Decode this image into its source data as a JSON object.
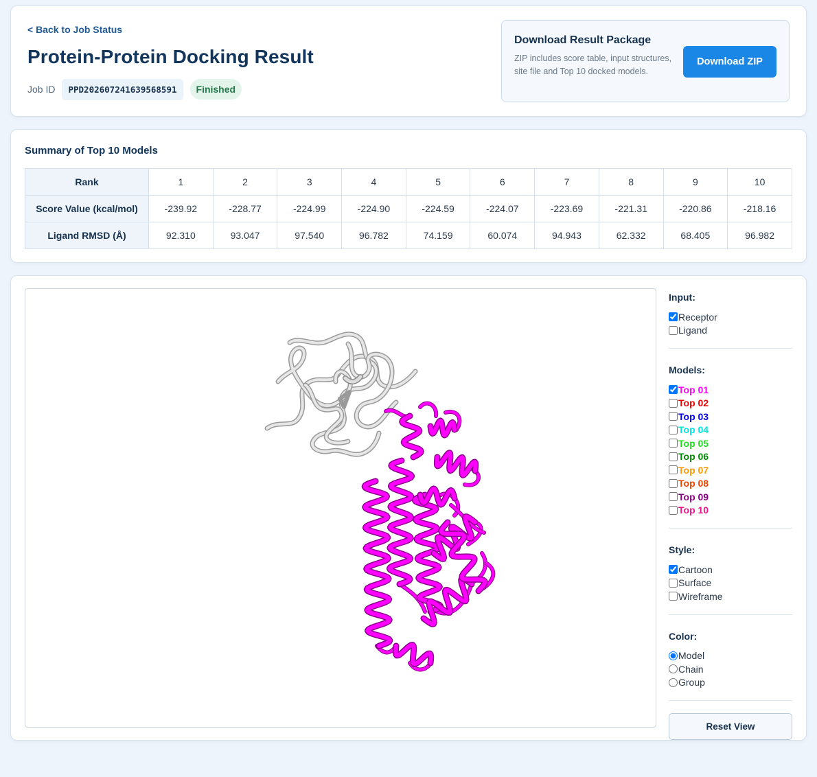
{
  "header": {
    "back_link": "< Back to Job Status",
    "title": "Protein-Protein Docking Result",
    "job_id_label": "Job ID",
    "job_id": "PPD202607241639568591",
    "status": "Finished"
  },
  "download": {
    "title": "Download Result Package",
    "description": "ZIP includes score table, input structures, site file and Top 10 docked models.",
    "button_label": "Download ZIP"
  },
  "summary": {
    "title": "Summary of Top 10 Models",
    "rank_label": "Rank",
    "score_label": "Score Value (kcal/mol)",
    "rmsd_label": "Ligand RMSD (Å)",
    "ranks": [
      "1",
      "2",
      "3",
      "4",
      "5",
      "6",
      "7",
      "8",
      "9",
      "10"
    ],
    "scores": [
      "-239.92",
      "-228.77",
      "-224.99",
      "-224.90",
      "-224.59",
      "-224.07",
      "-223.69",
      "-221.31",
      "-220.86",
      "-218.16"
    ],
    "rmsd": [
      "92.310",
      "93.047",
      "97.540",
      "96.782",
      "74.159",
      "60.074",
      "94.943",
      "62.332",
      "68.405",
      "96.982"
    ]
  },
  "controls": {
    "input_title": "Input:",
    "inputs": [
      {
        "label": "Receptor",
        "checked": true
      },
      {
        "label": "Ligand",
        "checked": false
      }
    ],
    "models_title": "Models:",
    "models": [
      {
        "label": "Top 01",
        "color": "#ff00ff",
        "checked": true
      },
      {
        "label": "Top 02",
        "color": "#ee0000",
        "checked": false
      },
      {
        "label": "Top 03",
        "color": "#0000ee",
        "checked": false
      },
      {
        "label": "Top 04",
        "color": "#00e5e5",
        "checked": false
      },
      {
        "label": "Top 05",
        "color": "#22dd22",
        "checked": false
      },
      {
        "label": "Top 06",
        "color": "#008800",
        "checked": false
      },
      {
        "label": "Top 07",
        "color": "#ff9900",
        "checked": false
      },
      {
        "label": "Top 08",
        "color": "#ee4400",
        "checked": false
      },
      {
        "label": "Top 09",
        "color": "#880088",
        "checked": false
      },
      {
        "label": "Top 10",
        "color": "#ee1188",
        "checked": false
      }
    ],
    "style_title": "Style:",
    "styles": [
      {
        "label": "Cartoon",
        "checked": true
      },
      {
        "label": "Surface",
        "checked": false
      },
      {
        "label": "Wireframe",
        "checked": false
      }
    ],
    "color_title": "Color:",
    "colors": [
      {
        "label": "Model",
        "checked": true
      },
      {
        "label": "Chain",
        "checked": false
      },
      {
        "label": "Group",
        "checked": false
      }
    ],
    "reset_label": "Reset View"
  },
  "viewer": {
    "receptor_color": "#e6e6e6",
    "ligand_color": "#ff00ff"
  }
}
